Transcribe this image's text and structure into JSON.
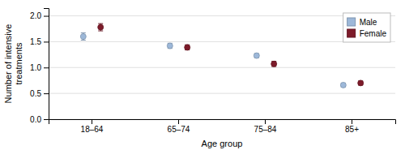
{
  "chart_data": {
    "type": "scatter",
    "xlabel": "Age group",
    "ylabel": "Number of intensive\ntreatments",
    "categories": [
      "18–64",
      "65–74",
      "75–84",
      "85+"
    ],
    "series": [
      {
        "name": "Male",
        "color": "#9db8d9",
        "values": [
          1.6,
          1.42,
          1.23,
          0.66
        ],
        "errors": [
          0.07,
          0.05,
          0.04,
          0.04
        ]
      },
      {
        "name": "Female",
        "color": "#7d1b2a",
        "values": [
          1.78,
          1.39,
          1.07,
          0.7
        ],
        "errors": [
          0.07,
          0.05,
          0.05,
          0.04
        ]
      }
    ],
    "ylim": [
      0.0,
      2.15
    ],
    "yticks": [
      {
        "value": 0.0,
        "label": "0.0"
      },
      0.5,
      {
        "value": 1.0,
        "label": "1.0"
      },
      1.5,
      {
        "value": 2.0,
        "label": "2.0"
      }
    ],
    "grid": true,
    "legend": "upper right"
  }
}
